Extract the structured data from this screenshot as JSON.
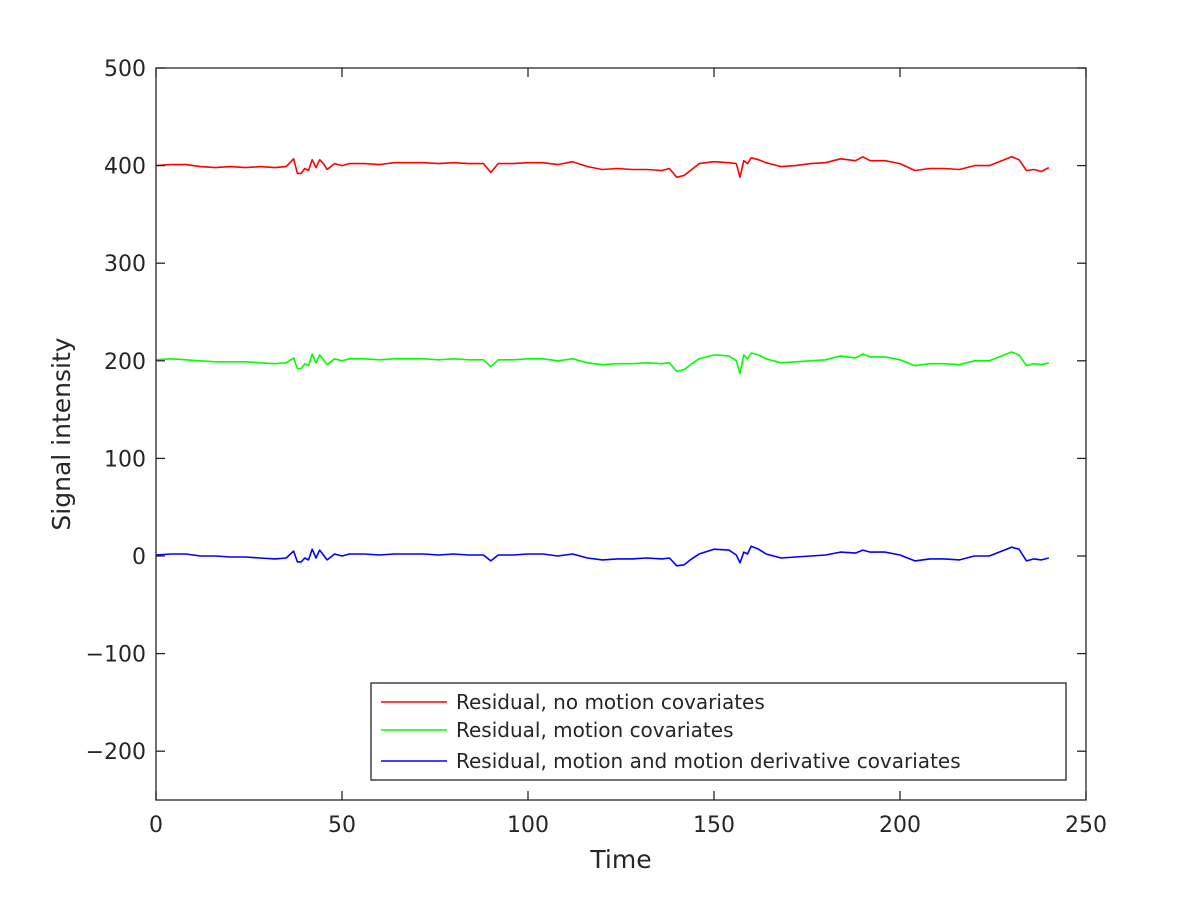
{
  "chart_data": {
    "type": "line",
    "title": "",
    "xlabel": "Time",
    "ylabel": "Signal intensity",
    "xlim": [
      0,
      250
    ],
    "ylim": [
      -250,
      500
    ],
    "xticks": [
      0,
      50,
      100,
      150,
      200,
      250
    ],
    "yticks": [
      -200,
      -100,
      0,
      100,
      200,
      300,
      400,
      500
    ],
    "grid": false,
    "legend_position": "bottom-right",
    "series": [
      {
        "name": "Residual, no motion covariates",
        "color": "#ff0000",
        "x": [
          0,
          4,
          8,
          12,
          16,
          20,
          24,
          28,
          32,
          35,
          37,
          38,
          39,
          40,
          41,
          42,
          43,
          44,
          45,
          46,
          47,
          48,
          50,
          52,
          56,
          60,
          64,
          68,
          72,
          76,
          80,
          84,
          88,
          90,
          92,
          96,
          100,
          104,
          108,
          112,
          116,
          120,
          124,
          128,
          132,
          136,
          138,
          140,
          142,
          144,
          146,
          150,
          154,
          156,
          157,
          158,
          159,
          160,
          162,
          164,
          168,
          172,
          176,
          180,
          184,
          188,
          190,
          192,
          196,
          200,
          204,
          208,
          212,
          216,
          220,
          224,
          228,
          230,
          232,
          234,
          236,
          238,
          240
        ],
        "values": [
          400,
          401,
          401,
          399,
          398,
          399,
          398,
          399,
          398,
          399,
          407,
          392,
          392,
          397,
          395,
          406,
          398,
          406,
          402,
          396,
          399,
          402,
          400,
          402,
          402,
          401,
          403,
          403,
          403,
          402,
          403,
          402,
          402,
          393,
          402,
          402,
          403,
          403,
          401,
          404,
          399,
          396,
          397,
          396,
          396,
          395,
          397,
          388,
          390,
          396,
          402,
          404,
          403,
          402,
          388,
          405,
          402,
          408,
          406,
          403,
          399,
          400,
          402,
          403,
          407,
          405,
          409,
          405,
          405,
          402,
          395,
          397,
          397,
          396,
          400,
          400,
          406,
          409,
          406,
          395,
          396,
          394,
          398
        ]
      },
      {
        "name": "Residual, motion covariates",
        "color": "#00ff00",
        "x": [
          0,
          4,
          8,
          12,
          16,
          20,
          24,
          28,
          32,
          35,
          37,
          38,
          39,
          40,
          41,
          42,
          43,
          44,
          45,
          46,
          47,
          48,
          50,
          52,
          56,
          60,
          64,
          68,
          72,
          76,
          80,
          84,
          88,
          90,
          92,
          96,
          100,
          104,
          108,
          112,
          116,
          120,
          124,
          128,
          132,
          136,
          138,
          140,
          142,
          144,
          146,
          150,
          154,
          156,
          157,
          158,
          159,
          160,
          162,
          164,
          168,
          172,
          176,
          180,
          184,
          188,
          190,
          192,
          196,
          200,
          204,
          208,
          212,
          216,
          220,
          224,
          228,
          230,
          232,
          234,
          236,
          238,
          240
        ],
        "values": [
          201,
          202,
          201,
          200,
          199,
          199,
          199,
          198,
          197,
          198,
          203,
          192,
          192,
          197,
          195,
          207,
          198,
          206,
          201,
          196,
          199,
          202,
          200,
          202,
          202,
          201,
          202,
          202,
          202,
          201,
          202,
          201,
          201,
          194,
          201,
          201,
          202,
          202,
          200,
          202,
          198,
          196,
          197,
          197,
          198,
          197,
          198,
          189,
          191,
          197,
          202,
          206,
          205,
          200,
          187,
          206,
          202,
          208,
          206,
          202,
          198,
          199,
          200,
          201,
          205,
          203,
          207,
          204,
          204,
          201,
          195,
          197,
          197,
          196,
          200,
          200,
          206,
          209,
          206,
          195,
          197,
          196,
          198
        ]
      },
      {
        "name": "Residual, motion and motion derivative covariates",
        "color": "#0000ff",
        "x": [
          0,
          4,
          8,
          12,
          16,
          20,
          24,
          28,
          32,
          35,
          37,
          38,
          39,
          40,
          41,
          42,
          43,
          44,
          45,
          46,
          47,
          48,
          50,
          52,
          56,
          60,
          64,
          68,
          72,
          76,
          80,
          84,
          88,
          90,
          92,
          96,
          100,
          104,
          108,
          112,
          116,
          120,
          124,
          128,
          132,
          136,
          138,
          140,
          142,
          144,
          146,
          150,
          154,
          156,
          157,
          158,
          159,
          160,
          162,
          164,
          168,
          172,
          176,
          180,
          184,
          188,
          190,
          192,
          196,
          200,
          204,
          208,
          212,
          216,
          220,
          224,
          228,
          230,
          232,
          234,
          236,
          238,
          240
        ],
        "values": [
          1,
          2,
          2,
          0,
          0,
          -1,
          -1,
          -2,
          -3,
          -2,
          5,
          -6,
          -6,
          -2,
          -4,
          7,
          -2,
          6,
          1,
          -4,
          -1,
          2,
          0,
          2,
          2,
          1,
          2,
          2,
          2,
          1,
          2,
          1,
          1,
          -5,
          1,
          1,
          2,
          2,
          0,
          2,
          -2,
          -4,
          -3,
          -3,
          -2,
          -3,
          -2,
          -10,
          -9,
          -3,
          2,
          7,
          6,
          1,
          -7,
          4,
          2,
          10,
          7,
          2,
          -2,
          -1,
          0,
          1,
          4,
          3,
          6,
          4,
          4,
          1,
          -5,
          -3,
          -3,
          -4,
          0,
          0,
          6,
          9,
          7,
          -5,
          -3,
          -4,
          -2
        ]
      }
    ]
  }
}
